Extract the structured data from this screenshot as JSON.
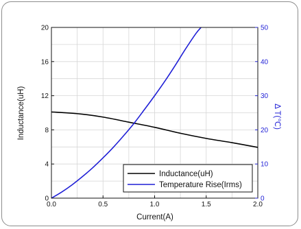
{
  "chart_data": {
    "type": "line",
    "xlabel": "Current(A)",
    "ylabel_left": "Inductance(uH)",
    "ylabel_right": "Δ T(℃)",
    "xlim": [
      0.0,
      2.0
    ],
    "ylim_left": [
      0,
      20
    ],
    "ylim_right": [
      0,
      50
    ],
    "x_ticks": [
      "0.0",
      "0.5",
      "1.0",
      "1.5",
      "2.0"
    ],
    "y_left_ticks": [
      "0",
      "4",
      "8",
      "12",
      "16",
      "20"
    ],
    "y_right_ticks": [
      "0",
      "10",
      "20",
      "30",
      "40",
      "50"
    ],
    "grid": true,
    "legend_position": "bottom-right",
    "series": [
      {
        "name": "Inductance(uH)",
        "axis": "left",
        "color": "#000000",
        "x": [
          0.0,
          0.25,
          0.5,
          0.75,
          1.0,
          1.25,
          1.5,
          1.75,
          2.0
        ],
        "values": [
          10.1,
          9.9,
          9.5,
          8.9,
          8.3,
          7.6,
          7.0,
          6.5,
          5.95
        ]
      },
      {
        "name": "Temperature Rise(Irms)",
        "axis": "right",
        "color": "#1f1fd6",
        "x": [
          0.0,
          0.1,
          0.2,
          0.3,
          0.4,
          0.5,
          0.6,
          0.7,
          0.8,
          0.9,
          1.0,
          1.1,
          1.2,
          1.3,
          1.4,
          1.45
        ],
        "values": [
          0,
          1.8,
          3.9,
          6.3,
          8.9,
          11.8,
          14.9,
          18.3,
          21.9,
          25.9,
          30.0,
          34.3,
          38.9,
          43.7,
          48.2,
          50.0
        ]
      }
    ]
  }
}
